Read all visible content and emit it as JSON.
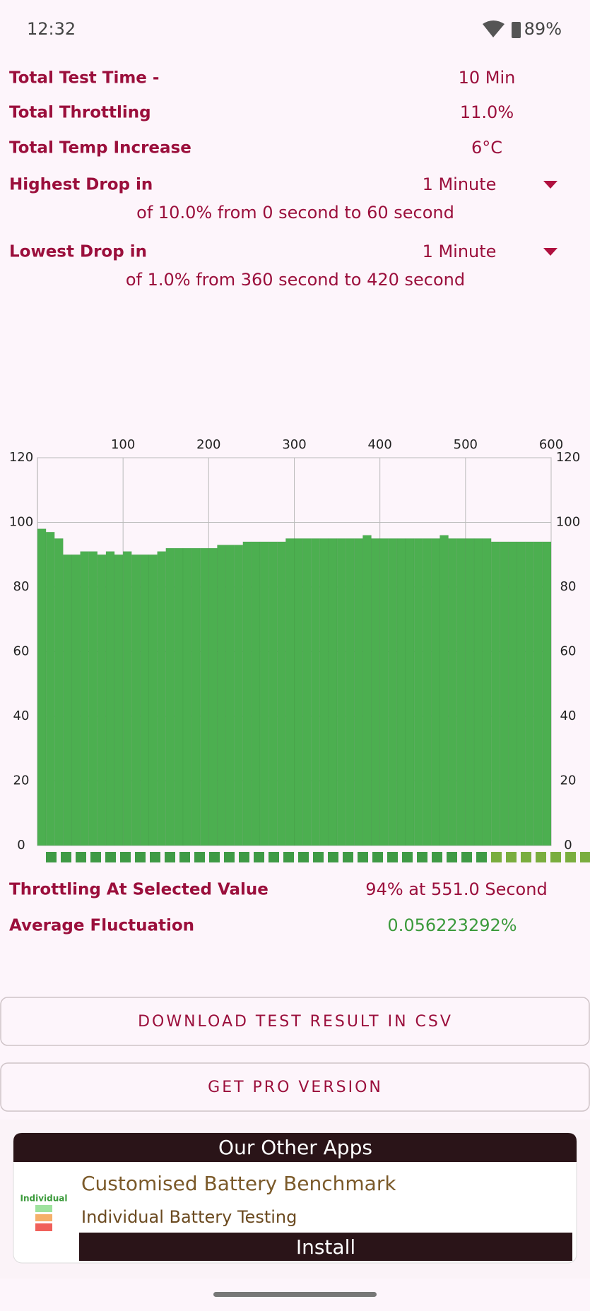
{
  "status_bar": {
    "time": "12:32",
    "battery": "89%"
  },
  "summary": [
    {
      "label": "Total Test Time -",
      "value": "10 Min"
    },
    {
      "label": "Total Throttling",
      "value": "11.0%"
    },
    {
      "label": "Total Temp Increase",
      "value": "6°C"
    }
  ],
  "highest_drop": {
    "label": "Highest Drop in",
    "period": "1 Minute",
    "detail": "of 10.0% from 0 second to  60 second"
  },
  "lowest_drop": {
    "label": "Lowest Drop in",
    "period": "1 Minute",
    "detail": "of 1.0% from 360 second to  420 second"
  },
  "chart_data": {
    "type": "bar",
    "color": "#4caf50",
    "x": [
      0,
      10,
      20,
      30,
      40,
      50,
      60,
      70,
      80,
      90,
      100,
      110,
      120,
      130,
      140,
      150,
      160,
      170,
      180,
      190,
      200,
      210,
      220,
      230,
      240,
      250,
      260,
      270,
      280,
      290,
      300,
      310,
      320,
      330,
      340,
      350,
      360,
      370,
      380,
      390,
      400,
      410,
      420,
      430,
      440,
      450,
      460,
      470,
      480,
      490,
      500,
      510,
      520,
      530,
      540,
      550,
      560,
      570,
      580,
      590
    ],
    "values": [
      98,
      97,
      95,
      90,
      90,
      91,
      91,
      90,
      91,
      90,
      91,
      90,
      90,
      90,
      91,
      92,
      92,
      92,
      92,
      92,
      92,
      93,
      93,
      93,
      94,
      94,
      94,
      94,
      94,
      95,
      95,
      95,
      95,
      95,
      95,
      95,
      95,
      95,
      96,
      95,
      95,
      95,
      95,
      95,
      95,
      95,
      95,
      96,
      95,
      95,
      95,
      95,
      95,
      94,
      94,
      94,
      94,
      94,
      94,
      94
    ],
    "xlim": [
      0,
      600
    ],
    "xticks": [
      100,
      200,
      300,
      400,
      500,
      600
    ],
    "ylim": [
      0,
      120
    ],
    "yticks": [
      0,
      20,
      40,
      60,
      80,
      100,
      120
    ],
    "grid": true
  },
  "results": [
    {
      "label": "Throttling At Selected Value",
      "value": "94% at 551.0 Second"
    },
    {
      "label": "Average Fluctuation",
      "value": "0.056223292%"
    }
  ],
  "buttons": [
    "DOWNLOAD TEST RESULT IN CSV",
    "GET PRO VERSION"
  ],
  "other_apps": {
    "header": "Our Other Apps",
    "icon_label": "Individual",
    "title": "Customised Battery Benchmark",
    "subtitle": "Individual Battery Testing",
    "action": "Install"
  }
}
